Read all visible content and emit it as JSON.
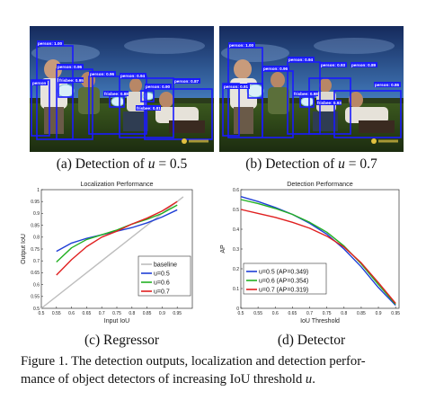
{
  "panels": {
    "a": {
      "caption_prefix": "(a) Detection of ",
      "caption_var": "u",
      "caption_suffix": " = 0.5",
      "detections": [
        "person: 1.00",
        "person: 0.96",
        "person: 0.96",
        "person: 0.94",
        "person: 0.90",
        "person: 0.87",
        "person",
        "frisbee: 0.95",
        "frisbee: 0.88",
        "frisbee: 0.81"
      ]
    },
    "b": {
      "caption_prefix": "(b) Detection of ",
      "caption_var": "u",
      "caption_suffix": " = 0.7",
      "detections": [
        "person: 1.00",
        "person: 0.96",
        "person: 0.94",
        "person: 0.93",
        "person: 0.89",
        "person: 0.86",
        "person: 0.91",
        "frisbee: 0.98",
        "frisbee: 0.93"
      ]
    },
    "c": {
      "caption": "(c) Regressor"
    },
    "d": {
      "caption": "(d) Detector"
    }
  },
  "figure_caption": {
    "line1": "Figure 1. The detection outputs, localization and detection perfor-",
    "line2_prefix": "mance of object detectors of increasing IoU threshold ",
    "line2_var": "u",
    "line2_suffix": "."
  },
  "colors": {
    "box": "#1a1aff",
    "baseline": "#bdbdbd",
    "u05": "#1f3fd6",
    "u06": "#22b022",
    "u07": "#e02020"
  },
  "chart_data": [
    {
      "type": "line",
      "title": "Localization Performance",
      "xlabel": "Input IoU",
      "ylabel": "Output IoU",
      "xlim": [
        0.5,
        1.0
      ],
      "ylim": [
        0.5,
        1.0
      ],
      "xticks": [
        "0.5",
        "0.55",
        "0.6",
        "0.65",
        "0.7",
        "0.75",
        "0.8",
        "0.85",
        "0.9",
        "0.95"
      ],
      "yticks": [
        "0.5",
        "0.55",
        "0.6",
        "0.65",
        "0.7",
        "0.75",
        "0.8",
        "0.85",
        "0.9",
        "0.95",
        "1"
      ],
      "legend_position": "bottom-right",
      "series": [
        {
          "name": "baseline",
          "color": "#bdbdbd",
          "x": [
            0.5,
            0.97
          ],
          "y": [
            0.5,
            0.97
          ]
        },
        {
          "name": "u=0.5",
          "color": "#1f3fd6",
          "x": [
            0.55,
            0.6,
            0.65,
            0.7,
            0.75,
            0.8,
            0.85,
            0.9,
            0.95
          ],
          "y": [
            0.74,
            0.775,
            0.795,
            0.81,
            0.825,
            0.84,
            0.86,
            0.885,
            0.915
          ]
        },
        {
          "name": "u=0.6",
          "color": "#22b022",
          "x": [
            0.55,
            0.6,
            0.65,
            0.7,
            0.75,
            0.8,
            0.85,
            0.9,
            0.95
          ],
          "y": [
            0.695,
            0.755,
            0.79,
            0.81,
            0.83,
            0.855,
            0.875,
            0.9,
            0.935
          ]
        },
        {
          "name": "u=0.7",
          "color": "#e02020",
          "x": [
            0.55,
            0.6,
            0.65,
            0.7,
            0.75,
            0.8,
            0.85,
            0.9,
            0.95
          ],
          "y": [
            0.64,
            0.705,
            0.76,
            0.8,
            0.825,
            0.855,
            0.88,
            0.91,
            0.95
          ]
        }
      ]
    },
    {
      "type": "line",
      "title": "Detection Performance",
      "xlabel": "IoU Threshold",
      "ylabel": "AP",
      "xlim": [
        0.5,
        0.96
      ],
      "ylim": [
        0,
        0.6
      ],
      "xticks": [
        "0.5",
        "0.55",
        "0.6",
        "0.65",
        "0.7",
        "0.75",
        "0.8",
        "0.85",
        "0.9",
        "0.95"
      ],
      "yticks": [
        "0",
        "0.1",
        "0.2",
        "0.3",
        "0.4",
        "0.5",
        "0.6"
      ],
      "legend_position": "bottom-left",
      "series": [
        {
          "name": "u=0.5 (AP=0.349)",
          "color": "#1f3fd6",
          "x": [
            0.5,
            0.55,
            0.6,
            0.65,
            0.7,
            0.75,
            0.8,
            0.85,
            0.9,
            0.95
          ],
          "y": [
            0.565,
            0.54,
            0.51,
            0.475,
            0.43,
            0.375,
            0.3,
            0.21,
            0.105,
            0.015
          ]
        },
        {
          "name": "u=0.6 (AP=0.354)",
          "color": "#22b022",
          "x": [
            0.5,
            0.55,
            0.6,
            0.65,
            0.7,
            0.75,
            0.8,
            0.85,
            0.9,
            0.95
          ],
          "y": [
            0.55,
            0.53,
            0.505,
            0.475,
            0.435,
            0.385,
            0.315,
            0.225,
            0.12,
            0.02
          ]
        },
        {
          "name": "u=0.7 (AP=0.319)",
          "color": "#e02020",
          "x": [
            0.5,
            0.55,
            0.6,
            0.65,
            0.7,
            0.75,
            0.8,
            0.85,
            0.9,
            0.95
          ],
          "y": [
            0.5,
            0.48,
            0.46,
            0.435,
            0.405,
            0.365,
            0.31,
            0.23,
            0.13,
            0.025
          ]
        }
      ]
    }
  ]
}
